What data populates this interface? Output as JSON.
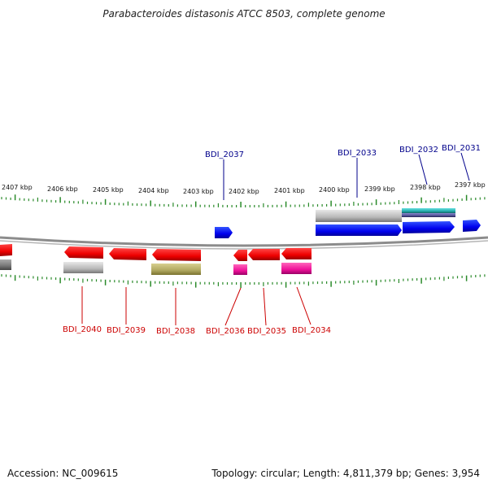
{
  "title": "Parabacteroides distasonis ATCC 8503, complete genome",
  "footer": {
    "accession": "Accession: NC_009615",
    "stats": "Topology: circular; Length: 4,811,379 bp; Genes: 3,954"
  },
  "colors": {
    "forward_gene": "#0000ff",
    "reverse_gene": "#ff0000",
    "tick": "#2a8a2a",
    "backbone": "#8c8c8c",
    "forward_label": "#00008b",
    "reverse_label": "#cc0000"
  },
  "ruler": {
    "unit": "kbp",
    "labels": [
      "2407 kbp",
      "2406 kbp",
      "2405 kbp",
      "2404 kbp",
      "2403 kbp",
      "2402 kbp",
      "2401 kbp",
      "2400 kbp",
      "2399 kbp",
      "2398 kbp",
      "2397 kbp"
    ]
  },
  "forward_labels": [
    "BDI_2037",
    "BDI_2033",
    "BDI_2032",
    "BDI_2031"
  ],
  "reverse_labels": [
    "BDI_2040",
    "BDI_2039",
    "BDI_2038",
    "BDI_2036",
    "BDI_2035",
    "BDI_2034"
  ]
}
